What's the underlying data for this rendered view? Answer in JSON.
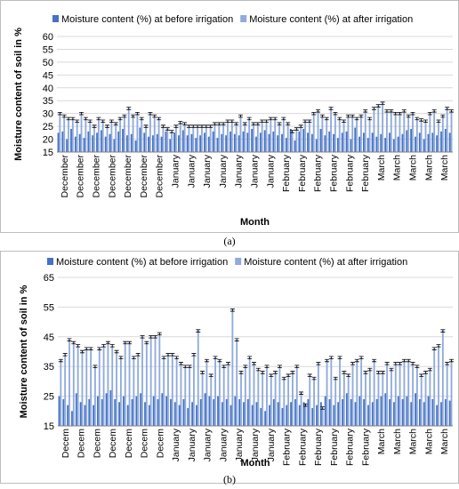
{
  "colors": {
    "before": "#4472c4",
    "after": "#8faadc",
    "grid": "#d9d9d9",
    "axis": "#7f7f7f"
  },
  "chart_data": [
    {
      "type": "bar",
      "panel_label": "(a)",
      "xlabel": "Month",
      "ylabel": "Moisture content of soil in %",
      "ylim": [
        15,
        60
      ],
      "yticks": [
        15,
        20,
        25,
        30,
        35,
        40,
        45,
        50,
        55,
        60
      ],
      "grid": true,
      "legend_position": "top",
      "x_tick_labels": [
        "December",
        "December",
        "December",
        "December",
        "December",
        "December",
        "December",
        "January",
        "January",
        "January",
        "January",
        "January",
        "January",
        "January",
        "February",
        "February",
        "February",
        "February",
        "February",
        "February",
        "March",
        "March",
        "March",
        "March",
        "March"
      ],
      "series": [
        {
          "name": "Moisture content (%) at before irrigation",
          "values": [
            22.5,
            23.0,
            20.0,
            24.0,
            21.0,
            22.0,
            20.5,
            23.0,
            21.5,
            22.5,
            23.5,
            21.0,
            22.0,
            20.0,
            23.0,
            24.0,
            21.5,
            22.0,
            19.5,
            24.5,
            22.5,
            21.0,
            21.5,
            22.0,
            21.0,
            23.0,
            20.0,
            22.5,
            21.5,
            23.5,
            21.5,
            22.0,
            20.5,
            21.5,
            22.5,
            21.0,
            23.0,
            20.5,
            22.0,
            21.5,
            23.0,
            22.0,
            21.5,
            23.0,
            22.5,
            24.0,
            21.0,
            22.5,
            23.5,
            22.0,
            23.0,
            21.5,
            22.0,
            20.5,
            24.0,
            19.5,
            23.0,
            24.0,
            22.5,
            22.0,
            20.0,
            24.0,
            21.5,
            23.0,
            22.0,
            20.5,
            22.5,
            23.0,
            20.0,
            24.5,
            21.0,
            22.5,
            20.5,
            22.5,
            21.0,
            22.0,
            20.5,
            22.5,
            20.0,
            21.0,
            22.0,
            23.5,
            24.0,
            21.0,
            22.5,
            20.0,
            22.0,
            22.5,
            21.5,
            23.0,
            24.0,
            22.5
          ]
        },
        {
          "name": "Moisture content (%) at after irrigation",
          "values": [
            30.0,
            29.0,
            28.0,
            28.0,
            27.0,
            30.0,
            28.0,
            27.0,
            25.0,
            28.0,
            27.0,
            25.0,
            27.0,
            26.0,
            28.0,
            29.0,
            32.0,
            29.0,
            30.0,
            28.0,
            25.0,
            30.0,
            29.0,
            28.0,
            25.0,
            24.0,
            23.0,
            25.0,
            26.5,
            26.0,
            25.0,
            25.0,
            25.0,
            25.0,
            25.0,
            25.0,
            26.0,
            26.0,
            26.0,
            27.0,
            27.0,
            26.0,
            29.0,
            26.0,
            28.0,
            26.0,
            26.0,
            27.0,
            27.0,
            28.0,
            28.0,
            26.0,
            28.0,
            26.0,
            23.0,
            24.0,
            25.0,
            27.0,
            27.0,
            30.0,
            31.0,
            29.0,
            28.0,
            32.0,
            30.0,
            28.0,
            27.0,
            29.0,
            29.0,
            28.0,
            29.0,
            31.0,
            28.0,
            32.0,
            33.0,
            34.0,
            31.0,
            31.0,
            30.0,
            30.0,
            31.0,
            29.0,
            30.0,
            28.0,
            27.5,
            27.0,
            30.0,
            31.0,
            27.0,
            29.0,
            32.0,
            31.0
          ]
        }
      ]
    },
    {
      "type": "bar",
      "panel_label": "(b)",
      "xlabel": "Month",
      "ylabel": "Moisture content of soil in %",
      "ylim": [
        15,
        65
      ],
      "yticks": [
        15,
        25,
        35,
        45,
        55,
        65
      ],
      "grid": true,
      "legend_position": "top",
      "x_tick_labels": [
        "Decem",
        "Decem",
        "Decem",
        "Decem",
        "Decem",
        "Decem",
        "Decem",
        "January",
        "January",
        "January",
        "January",
        "January",
        "January",
        "January",
        "February",
        "February",
        "February",
        "February",
        "February",
        "February",
        "March",
        "March",
        "March",
        "March",
        "March"
      ],
      "series": [
        {
          "name": "Moisture content (%) at before irrigation",
          "values": [
            25.0,
            24.0,
            22.0,
            20.0,
            26.0,
            23.0,
            22.0,
            24.0,
            22.0,
            25.0,
            24.0,
            26.0,
            27.0,
            24.0,
            23.0,
            25.0,
            22.0,
            24.0,
            25.0,
            26.0,
            23.0,
            22.0,
            25.0,
            24.0,
            26.0,
            25.0,
            24.0,
            23.0,
            22.0,
            24.0,
            21.0,
            23.0,
            22.0,
            24.0,
            26.0,
            25.0,
            24.0,
            25.0,
            23.0,
            24.0,
            22.0,
            25.0,
            24.0,
            23.0,
            24.0,
            22.0,
            23.0,
            21.0,
            20.0,
            22.0,
            24.0,
            23.0,
            21.0,
            22.0,
            23.0,
            24.0,
            22.0,
            23.0,
            24.0,
            21.0,
            22.0,
            23.0,
            25.0,
            24.0,
            22.0,
            23.0,
            24.0,
            26.0,
            24.0,
            23.0,
            25.0,
            24.0,
            22.0,
            23.0,
            24.0,
            25.0,
            26.0,
            24.0,
            23.0,
            25.0,
            24.0,
            25.0,
            23.0,
            26.0,
            24.0,
            23.0,
            25.0,
            24.0,
            22.0,
            23.0,
            24.0,
            23.5
          ]
        },
        {
          "name": "Moisture content (%) at after irrigation",
          "values": [
            37.0,
            39.0,
            44.0,
            43.0,
            42.0,
            40.0,
            41.0,
            41.0,
            35.0,
            41.0,
            42.0,
            43.0,
            42.0,
            40.0,
            38.0,
            43.0,
            43.0,
            38.0,
            39.0,
            45.0,
            43.0,
            45.0,
            45.0,
            46.0,
            38.0,
            39.0,
            39.0,
            38.0,
            36.0,
            35.0,
            35.0,
            39.0,
            47.0,
            33.0,
            37.0,
            32.0,
            38.0,
            37.0,
            35.0,
            36.0,
            54.0,
            44.0,
            33.0,
            35.0,
            38.0,
            36.0,
            34.0,
            33.0,
            35.0,
            32.0,
            33.0,
            35.0,
            31.0,
            32.0,
            33.0,
            35.0,
            26.0,
            22.0,
            32.0,
            31.0,
            36.0,
            21.0,
            37.0,
            38.0,
            31.0,
            38.0,
            33.0,
            32.0,
            36.0,
            37.0,
            38.0,
            33.0,
            34.0,
            37.0,
            33.0,
            33.0,
            36.0,
            34.0,
            36.0,
            36.0,
            37.0,
            37.0,
            36.0,
            35.0,
            32.0,
            33.0,
            34.0,
            41.0,
            42.0,
            47.0,
            36.0,
            37.0
          ]
        }
      ]
    }
  ]
}
